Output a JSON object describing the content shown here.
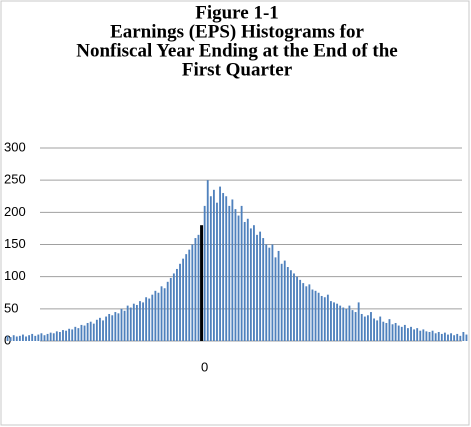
{
  "chart_data": {
    "type": "bar",
    "title": [
      "Figure 1-1",
      "Earnings (EPS) Histograms for",
      "Nonfiscal Year Ending at the End of the",
      "First Quarter"
    ],
    "categories": [
      null,
      null,
      null,
      null,
      null,
      null,
      null,
      null,
      null,
      null,
      null,
      null,
      null,
      null,
      null,
      null,
      null,
      null,
      null,
      null,
      null,
      null,
      null,
      null,
      null,
      null,
      null,
      null,
      null,
      null,
      null,
      null,
      null,
      null,
      null,
      null,
      null,
      null,
      null,
      null,
      null,
      null,
      null,
      null,
      null,
      null,
      null,
      null,
      null,
      null,
      null,
      null,
      null,
      null,
      null,
      null,
      null,
      null,
      null,
      null,
      null,
      null,
      null,
      "0",
      null,
      null,
      null,
      null,
      null,
      null,
      null,
      null,
      null,
      null,
      null,
      null,
      null,
      null,
      null,
      null,
      null,
      null,
      null,
      null,
      null,
      null,
      null,
      null,
      null,
      null,
      null,
      null,
      null,
      null,
      null,
      null,
      null,
      null,
      null,
      null,
      null,
      null,
      null,
      null,
      null,
      null,
      null,
      null,
      null,
      null,
      null,
      null,
      null,
      null,
      null,
      null,
      null,
      null,
      null,
      null,
      null,
      null,
      null,
      null,
      null,
      null,
      null,
      null,
      null,
      null,
      null,
      null,
      null,
      null,
      null,
      null,
      null,
      null,
      null,
      null,
      null,
      null,
      null,
      null,
      null,
      null,
      null,
      null,
      null,
      null
    ],
    "series": [
      {
        "color": "#4f81bd",
        "values": [
          8,
          6,
          9,
          7,
          8,
          10,
          7,
          9,
          11,
          8,
          10,
          12,
          9,
          11,
          13,
          12,
          15,
          14,
          17,
          16,
          19,
          18,
          22,
          20,
          25,
          24,
          28,
          30,
          27,
          33,
          36,
          32,
          38,
          42,
          40,
          45,
          43,
          50,
          47,
          55,
          52,
          58,
          56,
          62,
          60,
          68,
          66,
          72,
          78,
          75,
          85,
          82,
          92,
          98,
          105,
          112,
          120,
          128,
          135,
          142,
          150,
          160,
          165,
          null,
          210,
          250,
          225,
          235,
          215,
          240,
          230,
          225,
          210,
          220,
          205,
          195,
          210,
          185,
          190,
          175,
          180,
          165,
          170,
          160,
          150,
          145,
          150,
          130,
          140,
          120,
          125,
          115,
          110,
          105,
          100,
          95,
          90,
          85,
          88,
          80,
          78,
          75,
          70,
          68,
          72,
          62,
          60,
          58,
          55,
          52,
          50,
          55,
          48,
          45,
          60,
          42,
          38,
          40,
          45,
          35,
          32,
          38,
          30,
          28,
          34,
          26,
          28,
          24,
          22,
          25,
          20,
          22,
          18,
          20,
          16,
          18,
          15,
          14,
          16,
          12,
          14,
          11,
          13,
          10,
          12,
          9,
          11,
          8,
          14,
          10
        ]
      },
      {
        "color": "#000000",
        "values": [
          null,
          null,
          null,
          null,
          null,
          null,
          null,
          null,
          null,
          null,
          null,
          null,
          null,
          null,
          null,
          null,
          null,
          null,
          null,
          null,
          null,
          null,
          null,
          null,
          null,
          null,
          null,
          null,
          null,
          null,
          null,
          null,
          null,
          null,
          null,
          null,
          null,
          null,
          null,
          null,
          null,
          null,
          null,
          null,
          null,
          null,
          null,
          null,
          null,
          null,
          null,
          null,
          null,
          null,
          null,
          null,
          null,
          null,
          null,
          null,
          null,
          null,
          null,
          180,
          null,
          null,
          null,
          null,
          null,
          null,
          null,
          null,
          null,
          null,
          null,
          null,
          null,
          null,
          null,
          null,
          null,
          null,
          null,
          null,
          null,
          null,
          null,
          null,
          null,
          null,
          null,
          null,
          null,
          null,
          null,
          null,
          null,
          null,
          null,
          null,
          null,
          null,
          null,
          null,
          null,
          null,
          null,
          null,
          null,
          null,
          null,
          null,
          null,
          null,
          null,
          null,
          null,
          null,
          null,
          null,
          null,
          null,
          null,
          null,
          null,
          null,
          null,
          null,
          null,
          null,
          null,
          null,
          null,
          null,
          null,
          null,
          null,
          null,
          null,
          null,
          null,
          null,
          null,
          null,
          null,
          null,
          null,
          null,
          null,
          null
        ]
      }
    ],
    "ylim": [
      0,
      300
    ],
    "yticks": [
      0,
      50,
      100,
      150,
      200,
      250,
      300
    ],
    "grid": true
  }
}
